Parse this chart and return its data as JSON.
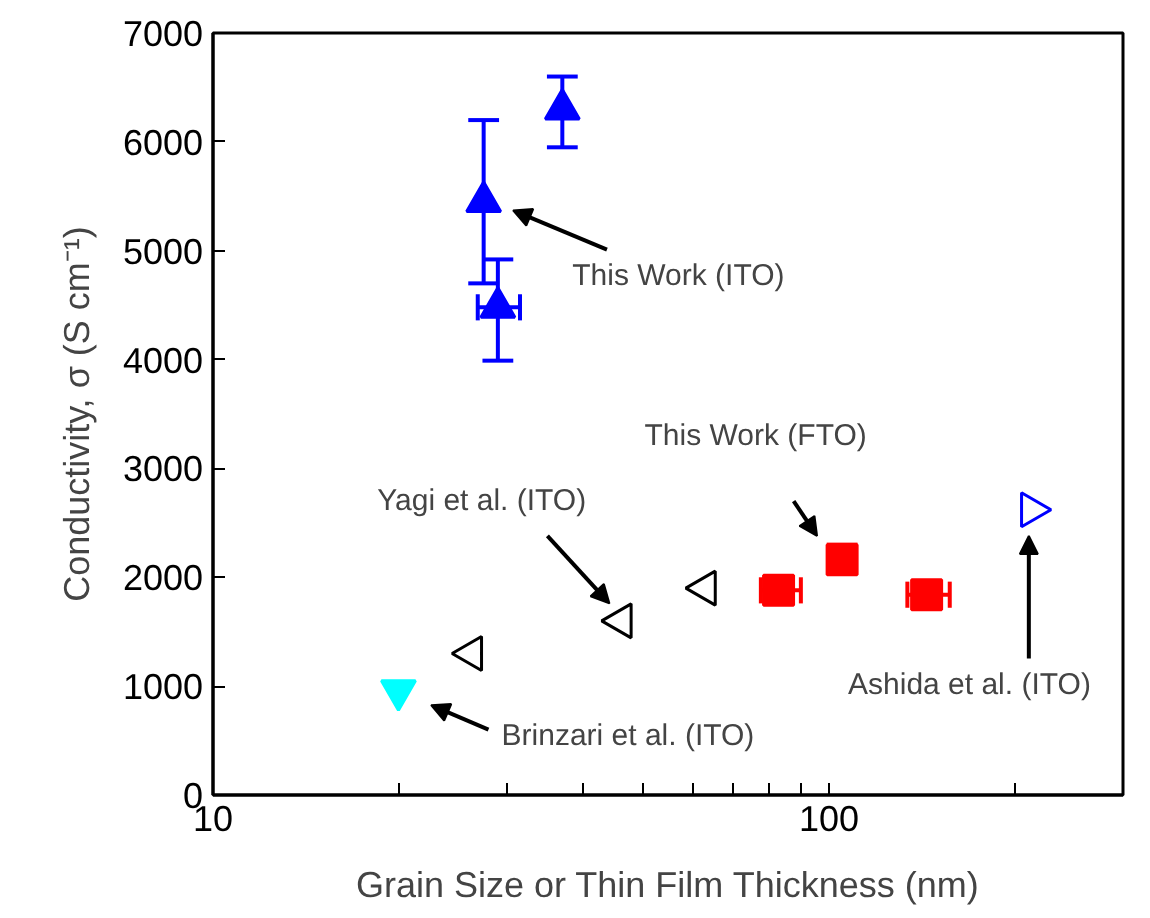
{
  "chart_data": {
    "type": "scatter",
    "xlabel": "Grain Size or Thin Film Thickness (nm)",
    "ylabel": "Conductivity, σ (S cm⁻¹)",
    "log": "x",
    "xlim": [
      10,
      300
    ],
    "ylim": [
      0,
      7000
    ],
    "xticks": [
      10,
      {
        "value": 20,
        "label": null
      },
      {
        "value": 30,
        "label": null
      },
      {
        "value": 40,
        "label": null
      },
      {
        "value": 50,
        "label": null
      },
      {
        "value": 60,
        "label": null
      },
      {
        "value": 70,
        "label": null
      },
      {
        "value": 80,
        "label": null
      },
      {
        "value": 90,
        "label": null
      },
      100,
      {
        "value": 200,
        "label": null
      },
      {
        "value": 300,
        "label": null
      }
    ],
    "yticks": [
      0,
      1000,
      2000,
      3000,
      4000,
      5000,
      6000,
      7000
    ],
    "grid": false,
    "series": [
      {
        "color": "#0000ff",
        "marker": "triangle",
        "x": [
          27.5,
          29,
          36.9
        ],
        "values": [
          5450,
          4480,
          6300
        ],
        "errors": [
          [
            4700,
            6200
          ],
          [
            3990,
            4920
          ],
          [
            5950,
            6600
          ]
        ],
        "xerrors": [
          null,
          [
            26.9,
            31.5
          ],
          null
        ]
      },
      {
        "color": "#ff0000",
        "marker": "square",
        "x": [
          82.8,
          105,
          144
        ],
        "values": [
          1880,
          2160,
          1840
        ],
        "errors": [
          null,
          [
            2040,
            2300
          ],
          null
        ],
        "xerrors": [
          [
            77.5,
            90
          ],
          null,
          [
            134,
            157
          ]
        ]
      },
      {
        "color": "#000000",
        "marker": "triangle-left-open",
        "x": [
          26.3,
          46,
          63
        ],
        "values": [
          1300,
          1600,
          1900
        ]
      },
      {
        "color": "#00ffff",
        "marker": "triangle-down",
        "x": [
          20
        ],
        "values": [
          960
        ]
      },
      {
        "color": "#0000ff",
        "marker": "triangle-right-open",
        "x": [
          213
        ],
        "values": [
          2620
        ]
      }
    ],
    "annotations": [
      "This Work (ITO)",
      "This Work (FTO)",
      "Yagi et al. (ITO)",
      "Ashida et al. (ITO)",
      "Brinzari et al. (ITO)"
    ]
  }
}
